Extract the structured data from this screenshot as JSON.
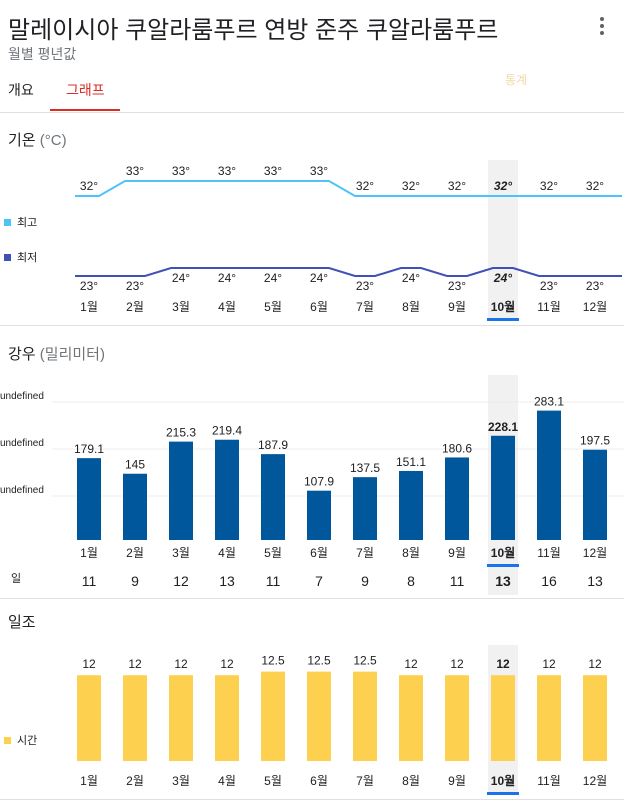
{
  "header": {
    "title": "말레이시아 쿠알라룸푸르 연방 준주 쿠알라룸푸르",
    "subtitle": "월별 평년값",
    "more_icon": "more-vert-icon"
  },
  "tabs": [
    {
      "label": "개요",
      "selected": false
    },
    {
      "label": "그래프",
      "selected": true
    }
  ],
  "source_link": "통계",
  "colors": {
    "accent": "#d93025",
    "temp_high": "#4fc3f7",
    "temp_low": "#3f51b5",
    "rain_bar": "#01579b",
    "sun_bar": "#fdd14f",
    "highlight_band": "#f1f1f1",
    "selected_month": "#1a73e8"
  },
  "selected_month_index": 9,
  "months": [
    "1월",
    "2월",
    "3월",
    "4월",
    "5월",
    "6월",
    "7월",
    "8월",
    "9월",
    "10월",
    "11월",
    "12월"
  ],
  "temperature": {
    "title": "기온",
    "unit": "(°C)",
    "legend_high": "최고",
    "legend_low": "최저"
  },
  "rain": {
    "title": "강우",
    "unit": "(밀리미터)",
    "gridline_labels": [
      "undefined",
      "undefined",
      "undefined"
    ],
    "days_label": "일"
  },
  "sunshine": {
    "title": "일조",
    "legend": "시간"
  },
  "chart_data": [
    {
      "type": "line",
      "title": "기온 (°C)",
      "categories": [
        "1월",
        "2월",
        "3월",
        "4월",
        "5월",
        "6월",
        "7월",
        "8월",
        "9월",
        "10월",
        "11월",
        "12월"
      ],
      "series": [
        {
          "name": "최고",
          "values": [
            32,
            33,
            33,
            33,
            33,
            33,
            32,
            32,
            32,
            32,
            32,
            32
          ]
        },
        {
          "name": "최저",
          "values": [
            23,
            23,
            24,
            24,
            24,
            24,
            23,
            24,
            23,
            24,
            23,
            23
          ]
        }
      ]
    },
    {
      "type": "bar",
      "title": "강우 (밀리미터)",
      "categories": [
        "1월",
        "2월",
        "3월",
        "4월",
        "5월",
        "6월",
        "7월",
        "8월",
        "9월",
        "10월",
        "11월",
        "12월"
      ],
      "values": [
        179.1,
        145,
        215.3,
        219.4,
        187.9,
        107.9,
        137.5,
        151.1,
        180.6,
        228.1,
        283.1,
        197.5
      ],
      "days_label": "일",
      "days": [
        11,
        9,
        12,
        13,
        11,
        7,
        9,
        8,
        11,
        13,
        16,
        13
      ]
    },
    {
      "type": "bar",
      "title": "일조",
      "categories": [
        "1월",
        "2월",
        "3월",
        "4월",
        "5월",
        "6월",
        "7월",
        "8월",
        "9월",
        "10월",
        "11월",
        "12월"
      ],
      "series": [
        {
          "name": "시간",
          "values": [
            12,
            12,
            12,
            12,
            12.5,
            12.5,
            12.5,
            12,
            12,
            12,
            12,
            12
          ]
        }
      ]
    }
  ]
}
